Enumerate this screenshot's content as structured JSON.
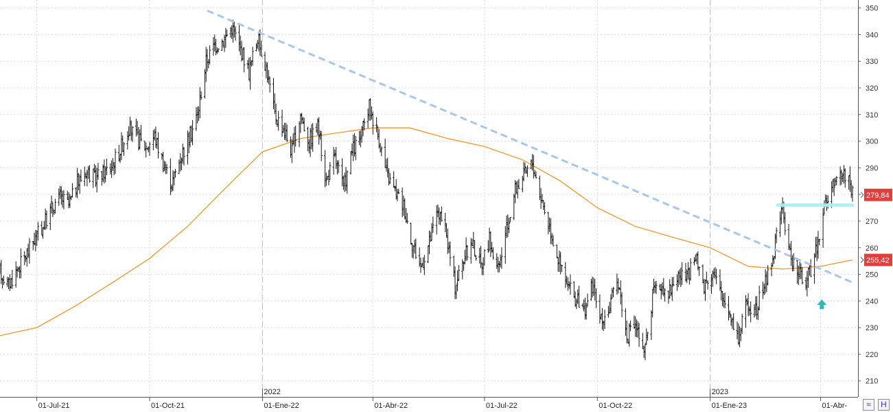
{
  "chart_data": {
    "type": "ohlc",
    "title": "",
    "xlabel": "",
    "ylabel": "",
    "ylim": [
      204,
      353
    ],
    "y_ticks": [
      210,
      220,
      230,
      240,
      250,
      260,
      270,
      280,
      290,
      300,
      310,
      320,
      330,
      340,
      350
    ],
    "y_tick_labels": [
      "210",
      "220",
      "230",
      "240",
      "250",
      "260",
      "270",
      "280",
      "290",
      "300",
      "310",
      "320",
      "330",
      "340",
      "350"
    ],
    "x_range": [
      "2021-06-01",
      "2023-04-27"
    ],
    "x_ticks": [
      {
        "date": "2021-07-01",
        "label": "01-Jul-21"
      },
      {
        "date": "2021-10-01",
        "label": "01-Oct-21"
      },
      {
        "date": "2022-01-01",
        "label": "01-Ene-22"
      },
      {
        "date": "2022-04-01",
        "label": "01-Abr-22"
      },
      {
        "date": "2022-07-01",
        "label": "01-Jul-22"
      },
      {
        "date": "2022-10-01",
        "label": "01-Oct-22"
      },
      {
        "date": "2023-01-01",
        "label": "01-Ene-23"
      },
      {
        "date": "2023-04-01",
        "label": "01-Abr-"
      }
    ],
    "year_markers": [
      {
        "date": "2022-01-01",
        "label": "2022"
      },
      {
        "date": "2023-01-01",
        "label": "2023"
      }
    ],
    "grid": true,
    "series": [
      {
        "kind": "price",
        "color": "#111111",
        "points": [
          [
            "2021-06-01",
            251
          ],
          [
            "2021-06-08",
            246
          ],
          [
            "2021-06-15",
            252
          ],
          [
            "2021-06-22",
            257
          ],
          [
            "2021-06-29",
            263
          ],
          [
            "2021-07-06",
            268
          ],
          [
            "2021-07-13",
            275
          ],
          [
            "2021-07-20",
            279
          ],
          [
            "2021-07-27",
            276
          ],
          [
            "2021-08-03",
            284
          ],
          [
            "2021-08-10",
            289
          ],
          [
            "2021-08-17",
            286
          ],
          [
            "2021-08-24",
            288
          ],
          [
            "2021-08-31",
            291
          ],
          [
            "2021-09-07",
            297
          ],
          [
            "2021-09-14",
            305
          ],
          [
            "2021-09-21",
            301
          ],
          [
            "2021-09-28",
            298
          ],
          [
            "2021-10-05",
            302
          ],
          [
            "2021-10-12",
            292
          ],
          [
            "2021-10-19",
            284
          ],
          [
            "2021-10-26",
            294
          ],
          [
            "2021-11-02",
            301
          ],
          [
            "2021-11-09",
            310
          ],
          [
            "2021-11-16",
            330
          ],
          [
            "2021-11-23",
            336
          ],
          [
            "2021-11-30",
            338
          ],
          [
            "2021-12-07",
            343
          ],
          [
            "2021-12-14",
            335
          ],
          [
            "2021-12-21",
            326
          ],
          [
            "2021-12-28",
            339
          ],
          [
            "2022-01-04",
            328
          ],
          [
            "2022-01-11",
            310
          ],
          [
            "2022-01-18",
            305
          ],
          [
            "2022-01-25",
            296
          ],
          [
            "2022-02-01",
            310
          ],
          [
            "2022-02-08",
            300
          ],
          [
            "2022-02-15",
            306
          ],
          [
            "2022-02-22",
            285
          ],
          [
            "2022-03-01",
            294
          ],
          [
            "2022-03-08",
            282
          ],
          [
            "2022-03-15",
            296
          ],
          [
            "2022-03-22",
            301
          ],
          [
            "2022-03-29",
            313
          ],
          [
            "2022-04-05",
            303
          ],
          [
            "2022-04-12",
            288
          ],
          [
            "2022-04-19",
            281
          ],
          [
            "2022-04-26",
            276
          ],
          [
            "2022-05-03",
            262
          ],
          [
            "2022-05-10",
            253
          ],
          [
            "2022-05-17",
            262
          ],
          [
            "2022-05-24",
            274
          ],
          [
            "2022-05-31",
            264
          ],
          [
            "2022-06-07",
            246
          ],
          [
            "2022-06-14",
            256
          ],
          [
            "2022-06-21",
            262
          ],
          [
            "2022-06-28",
            253
          ],
          [
            "2022-07-05",
            263
          ],
          [
            "2022-07-12",
            251
          ],
          [
            "2022-07-19",
            266
          ],
          [
            "2022-07-26",
            282
          ],
          [
            "2022-08-02",
            287
          ],
          [
            "2022-08-09",
            292
          ],
          [
            "2022-08-16",
            279
          ],
          [
            "2022-08-23",
            268
          ],
          [
            "2022-08-30",
            256
          ],
          [
            "2022-09-06",
            246
          ],
          [
            "2022-09-13",
            241
          ],
          [
            "2022-09-20",
            236
          ],
          [
            "2022-09-27",
            246
          ],
          [
            "2022-10-04",
            232
          ],
          [
            "2022-10-11",
            238
          ],
          [
            "2022-10-18",
            248
          ],
          [
            "2022-10-25",
            226
          ],
          [
            "2022-11-01",
            232
          ],
          [
            "2022-11-08",
            219
          ],
          [
            "2022-11-15",
            242
          ],
          [
            "2022-11-22",
            246
          ],
          [
            "2022-11-29",
            244
          ],
          [
            "2022-12-06",
            250
          ],
          [
            "2022-12-13",
            248
          ],
          [
            "2022-12-20",
            256
          ],
          [
            "2022-12-27",
            246
          ],
          [
            "2023-01-03",
            252
          ],
          [
            "2023-01-10",
            242
          ],
          [
            "2023-01-17",
            236
          ],
          [
            "2023-01-24",
            226
          ],
          [
            "2023-01-31",
            240
          ],
          [
            "2023-02-07",
            236
          ],
          [
            "2023-02-14",
            246
          ],
          [
            "2023-02-21",
            256
          ],
          [
            "2023-02-28",
            276
          ],
          [
            "2023-03-07",
            258
          ],
          [
            "2023-03-14",
            250
          ],
          [
            "2023-03-21",
            248
          ],
          [
            "2023-03-28",
            258
          ],
          [
            "2023-04-04",
            276
          ],
          [
            "2023-04-11",
            282
          ],
          [
            "2023-04-18",
            288
          ],
          [
            "2023-04-25",
            286
          ],
          [
            "2023-04-27",
            279.84
          ]
        ]
      },
      {
        "kind": "moving-average",
        "color": "#f0962a",
        "points": [
          [
            "2021-06-01",
            227
          ],
          [
            "2021-07-01",
            230
          ],
          [
            "2021-08-01",
            238
          ],
          [
            "2021-09-01",
            247
          ],
          [
            "2021-10-01",
            256
          ],
          [
            "2021-11-01",
            268
          ],
          [
            "2021-12-01",
            282
          ],
          [
            "2022-01-01",
            296
          ],
          [
            "2022-02-01",
            301
          ],
          [
            "2022-03-01",
            303
          ],
          [
            "2022-04-01",
            305
          ],
          [
            "2022-05-01",
            305
          ],
          [
            "2022-06-01",
            301
          ],
          [
            "2022-07-01",
            298
          ],
          [
            "2022-08-01",
            293
          ],
          [
            "2022-09-01",
            285
          ],
          [
            "2022-10-01",
            275
          ],
          [
            "2022-11-01",
            268
          ],
          [
            "2022-12-01",
            264
          ],
          [
            "2023-01-01",
            260
          ],
          [
            "2023-02-01",
            253
          ],
          [
            "2023-03-01",
            252
          ],
          [
            "2023-04-01",
            253
          ],
          [
            "2023-04-27",
            255.42
          ]
        ]
      }
    ],
    "trendlines": [
      {
        "from": [
          "2021-11-17",
          349
        ],
        "to": [
          "2023-04-27",
          247
        ],
        "color": "#a7c6ea",
        "style": "dashed"
      }
    ],
    "levels": [
      {
        "from": "2023-02-25",
        "to": "2023-04-27",
        "value": 276,
        "color": "#aeeef2"
      }
    ],
    "annotations": [
      {
        "kind": "up-arrow",
        "date": "2023-04-02",
        "value": 238.5,
        "color": "#2fb8b8"
      }
    ],
    "price_tags": [
      {
        "label": "279,84",
        "value": 279.84,
        "color": "#e0403c"
      },
      {
        "label": "255,42",
        "value": 255.42,
        "color": "#e0403c"
      }
    ]
  },
  "toolbar": {
    "buttons": [
      {
        "icon": "wave-icon",
        "glyph": "≈"
      },
      {
        "icon": "save-icon",
        "glyph": "H"
      }
    ]
  }
}
